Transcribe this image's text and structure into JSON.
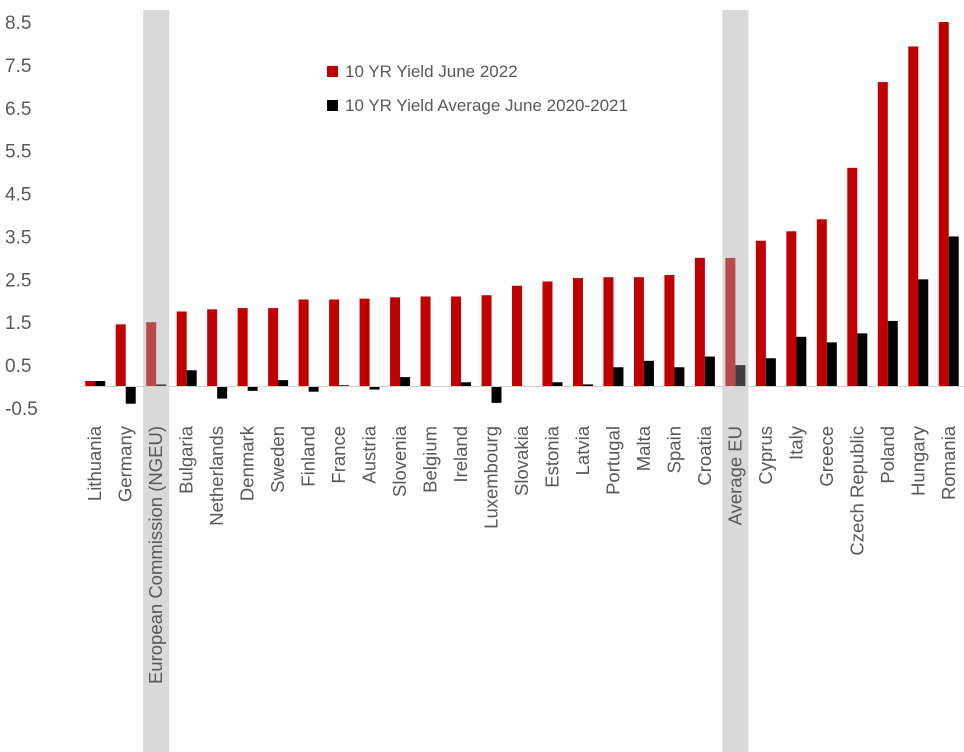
{
  "chart_data": {
    "type": "bar",
    "categories": [
      "Lithuania",
      "Germany",
      "European Commission (NGEU)",
      "Bulgaria",
      "Netherlands",
      "Denmark",
      "Sweden",
      "Finland",
      "France",
      "Austria",
      "Slovenia",
      "Belgium",
      "Ireland",
      "Luxembourg",
      "Slovakia",
      "Estonia",
      "Latvia",
      "Portugal",
      "Malta",
      "Spain",
      "Croatia",
      "Average EU",
      "Cyprus",
      "Italy",
      "Greece",
      "Czech Republic",
      "Poland",
      "Hungary",
      "Romania"
    ],
    "highlighted_categories": [
      "European Commission (NGEU)",
      "Average EU"
    ],
    "series": [
      {
        "name": "10 YR Yield June 2022",
        "color": "#C00000",
        "values": [
          0.13,
          1.45,
          1.5,
          1.75,
          1.8,
          1.83,
          1.83,
          2.03,
          2.03,
          2.05,
          2.08,
          2.1,
          2.1,
          2.13,
          2.35,
          2.45,
          2.53,
          2.55,
          2.55,
          2.6,
          3.0,
          3.0,
          3.4,
          3.62,
          3.9,
          5.1,
          7.1,
          7.93,
          8.5
        ]
      },
      {
        "name": "10 YR Yield Average June 2020-2021",
        "color": "#000000",
        "values": [
          0.13,
          -0.4,
          0.05,
          0.38,
          -0.28,
          -0.1,
          0.15,
          -0.12,
          0.03,
          -0.07,
          0.22,
          0.0,
          0.1,
          -0.38,
          0.0,
          0.1,
          0.05,
          0.45,
          0.6,
          0.45,
          0.7,
          0.5,
          0.66,
          1.16,
          1.03,
          1.24,
          1.53,
          2.5,
          3.5
        ]
      }
    ],
    "ylim": [
      -0.5,
      8.5
    ],
    "yticks": [
      "8.5",
      "7.5",
      "6.5",
      "5.5",
      "4.5",
      "3.5",
      "2.5",
      "1.5",
      "0.5",
      "-0.5"
    ],
    "ytick_values": [
      8.5,
      7.5,
      6.5,
      5.5,
      4.5,
      3.5,
      2.5,
      1.5,
      0.5,
      -0.5
    ],
    "grid": false,
    "legend_position": "top-center"
  }
}
